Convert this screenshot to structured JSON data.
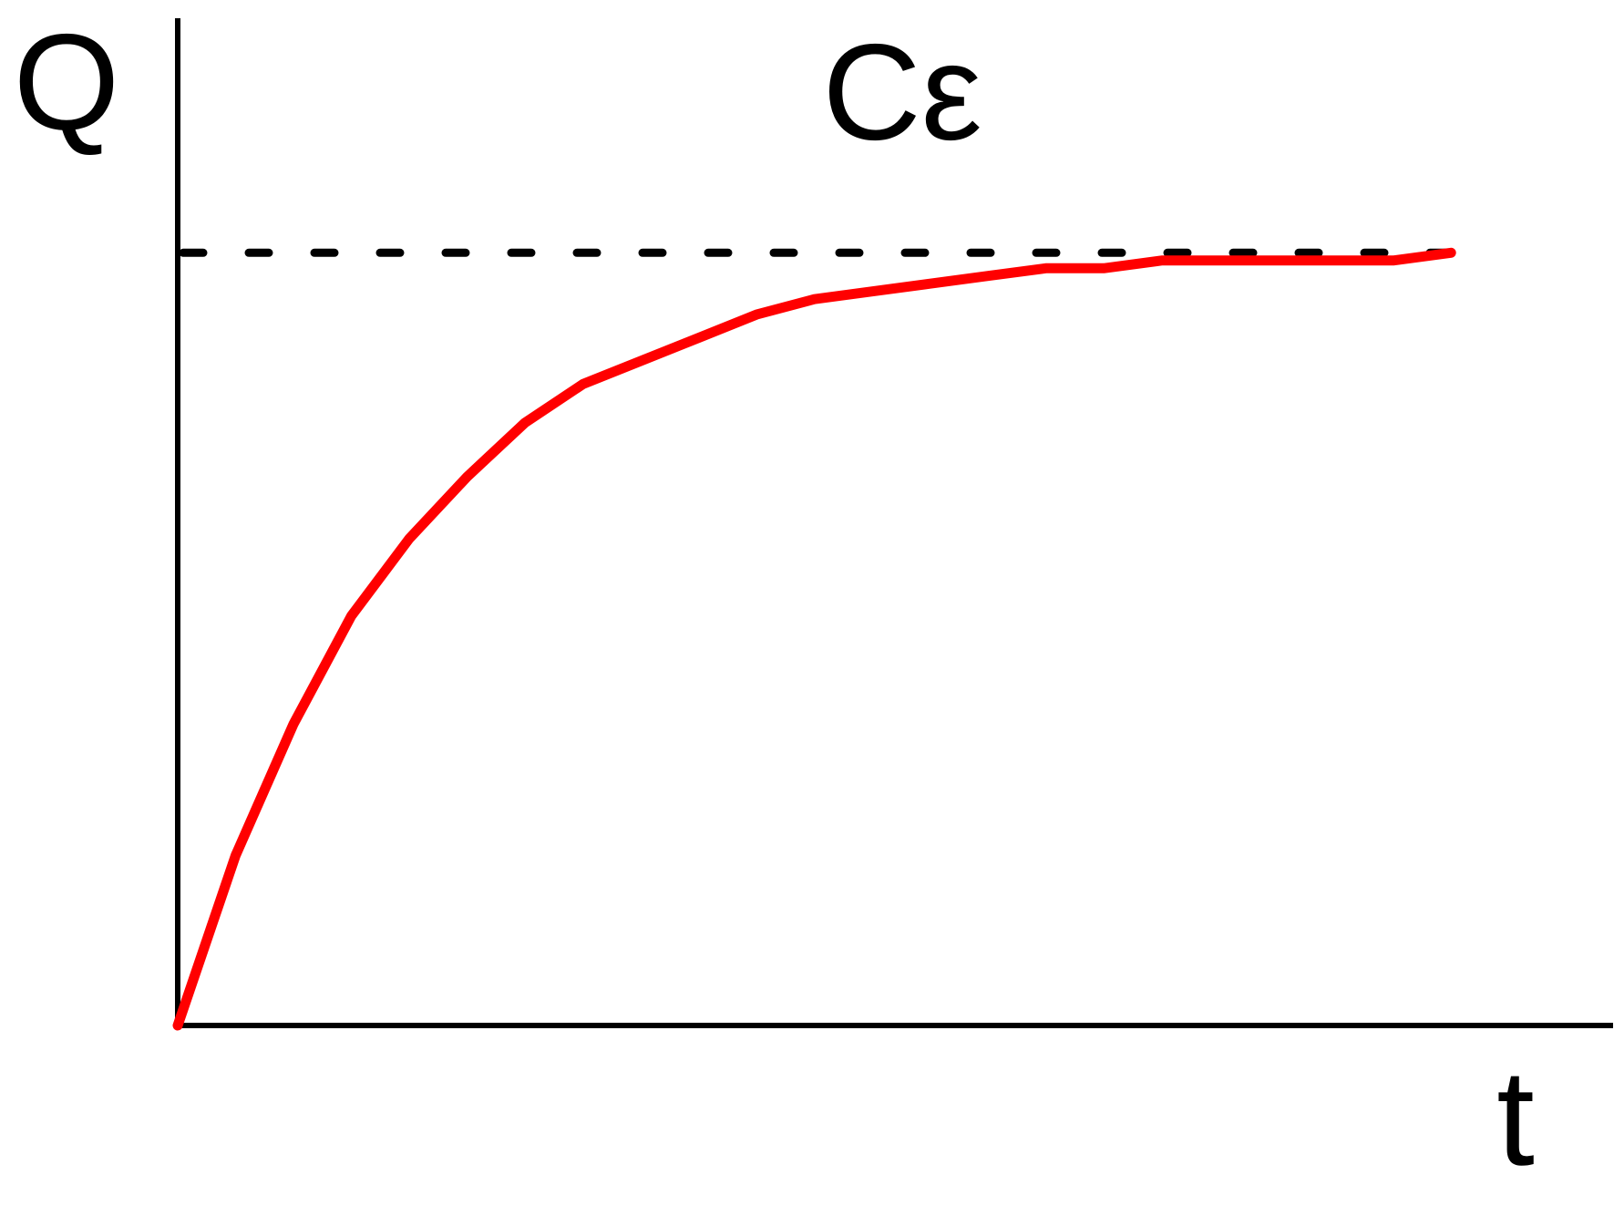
{
  "chart_data": {
    "type": "line",
    "x_label": "t",
    "y_label": "Q",
    "x": [
      0,
      0.25,
      0.5,
      0.75,
      1,
      1.25,
      1.5,
      1.75,
      2,
      2.25,
      2.5,
      2.75,
      3,
      3.25,
      3.5,
      3.75,
      4,
      4.25,
      4.5,
      4.75,
      5,
      5.25,
      5.5
    ],
    "values": [
      0,
      0.22,
      0.39,
      0.53,
      0.63,
      0.71,
      0.78,
      0.83,
      0.86,
      0.89,
      0.92,
      0.94,
      0.95,
      0.96,
      0.97,
      0.98,
      0.98,
      0.99,
      0.99,
      0.99,
      0.99,
      0.99,
      1
    ],
    "color": "#ff0000",
    "asymptote": {
      "value": 1,
      "label": "Cε",
      "color": "#000000"
    },
    "xlim": [
      0,
      6.2
    ],
    "ylim": [
      0,
      1.3
    ]
  }
}
